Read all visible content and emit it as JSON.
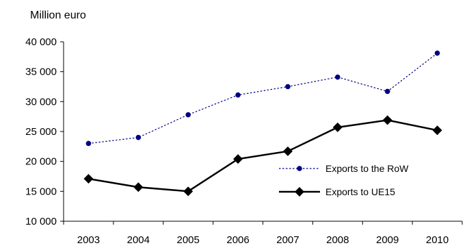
{
  "chart_data": {
    "type": "line",
    "title": "",
    "ylabel": "Million euro",
    "xlabel": "",
    "categories": [
      "2003",
      "2004",
      "2005",
      "2006",
      "2007",
      "2008",
      "2009",
      "2010"
    ],
    "ylim": [
      10000,
      40000
    ],
    "yticks": [
      10000,
      15000,
      20000,
      25000,
      30000,
      35000,
      40000
    ],
    "ytick_labels": [
      "10 000",
      "15 000",
      "20 000",
      "25 000",
      "30 000",
      "35 000",
      "40 000"
    ],
    "grid": false,
    "legend_position": "bottom-right",
    "series": [
      {
        "name": "Exports to the RoW",
        "values": [
          23000,
          24000,
          27800,
          31100,
          32500,
          34100,
          31700,
          38100
        ],
        "color": "#000080",
        "line_style": "dotted",
        "marker": "circle"
      },
      {
        "name": "Exports to UE15",
        "values": [
          17100,
          15700,
          15000,
          20400,
          21700,
          25700,
          26900,
          25200
        ],
        "color": "#000000",
        "line_style": "solid",
        "marker": "diamond"
      }
    ]
  }
}
